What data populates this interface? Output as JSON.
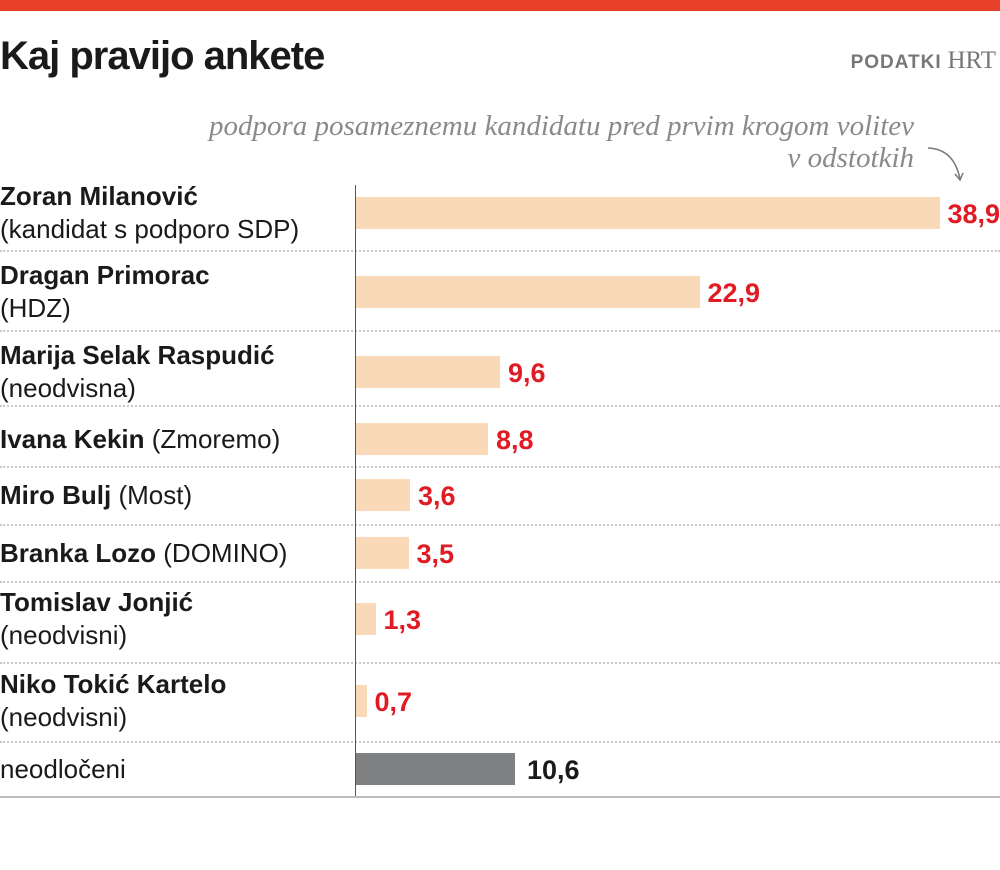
{
  "header": {
    "title": "Kaj pravijo ankete",
    "source_label": "PODATKI",
    "source_value": "HRT"
  },
  "chart_data": {
    "type": "bar",
    "orientation": "horizontal",
    "title": "Kaj pravijo ankete",
    "subtitle_line1": "podpora posameznemu kandidatu pred prvim krogom volitev",
    "subtitle_line2": "v odstotkih",
    "unit": "%",
    "grid": false,
    "colors": {
      "candidate_bar": "#f9d9b8",
      "undecided_bar": "#7f8081",
      "candidate_value": "#e01b24",
      "undecided_value": "#1a1a1a",
      "accent": "#e8412a"
    },
    "categories": [
      {
        "name": "Zoran Milanović",
        "detail": "(kandidat s podporo SDP)",
        "layout": "two-line",
        "value": 38.9,
        "value_label": "38,9",
        "kind": "candidate"
      },
      {
        "name": "Dragan Primorac",
        "detail": "(HDZ)",
        "layout": "two-line",
        "value": 22.9,
        "value_label": "22,9",
        "kind": "candidate"
      },
      {
        "name": "Marija Selak Raspudić",
        "detail": "(neodvisna)",
        "layout": "two-line",
        "value": 9.6,
        "value_label": "9,6",
        "kind": "candidate"
      },
      {
        "name": "Ivana Kekin",
        "detail": "(Zmoremo)",
        "layout": "inline",
        "value": 8.8,
        "value_label": "8,8",
        "kind": "candidate"
      },
      {
        "name": "Miro Bulj",
        "detail": "(Most)",
        "layout": "inline",
        "value": 3.6,
        "value_label": "3,6",
        "kind": "candidate"
      },
      {
        "name": "Branka Lozo",
        "detail": "(DOMINO)",
        "layout": "inline",
        "value": 3.5,
        "value_label": "3,5",
        "kind": "candidate"
      },
      {
        "name": "Tomislav Jonjić",
        "detail": "(neodvisni)",
        "layout": "two-line",
        "value": 1.3,
        "value_label": "1,3",
        "kind": "candidate"
      },
      {
        "name": "Niko Tokić Kartelo",
        "detail": "(neodvisni)",
        "layout": "two-line",
        "value": 0.7,
        "value_label": "0,7",
        "kind": "candidate"
      },
      {
        "name": "",
        "detail": "neodločeni",
        "layout": "plain",
        "value": 10.6,
        "value_label": "10,6",
        "kind": "undecided"
      }
    ]
  }
}
